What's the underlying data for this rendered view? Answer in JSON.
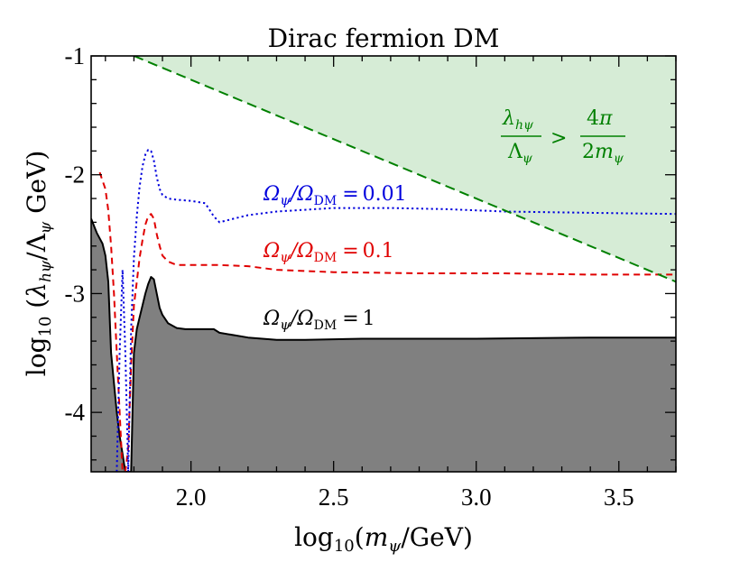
{
  "chart_data": {
    "type": "line",
    "title": "Dirac fermion DM",
    "xlabel": "log10(mψ/GeV)",
    "ylabel": "log10(λhψ/Λψ GeV)",
    "xlim": [
      1.65,
      3.7
    ],
    "ylim": [
      -4.5,
      -1.0
    ],
    "x_ticks": [
      2.0,
      2.5,
      3.0,
      3.5
    ],
    "x_tick_labels": [
      "2.0",
      "2.5",
      "3.0",
      "3.5"
    ],
    "y_ticks": [
      -1,
      -2,
      -3,
      -4
    ],
    "y_tick_labels": [
      "-1",
      "-2",
      "-3",
      "-4"
    ],
    "series": [
      {
        "name": "Ωψ/ΩDM = 1",
        "style": "solid",
        "color": "#000000",
        "fill_below": "#808080",
        "x": [
          1.65,
          1.67,
          1.69,
          1.7,
          1.71,
          1.72,
          1.74,
          1.75,
          1.76,
          1.77,
          1.78,
          1.79,
          1.8,
          1.81,
          1.82,
          1.83,
          1.84,
          1.85,
          1.86,
          1.87,
          1.88,
          1.89,
          1.9,
          1.92,
          1.95,
          1.98,
          2.0,
          2.05,
          2.08,
          2.1,
          2.15,
          2.2,
          2.3,
          2.4,
          2.6,
          3.0,
          3.4,
          3.7
        ],
        "y": [
          -2.37,
          -2.49,
          -2.58,
          -2.68,
          -2.9,
          -3.5,
          -4.0,
          -4.2,
          -4.35,
          -4.5,
          -4.5,
          -4.5,
          -3.5,
          -3.3,
          -3.2,
          -3.1,
          -3.0,
          -2.92,
          -2.86,
          -2.88,
          -3.0,
          -3.12,
          -3.18,
          -3.25,
          -3.29,
          -3.3,
          -3.3,
          -3.3,
          -3.3,
          -3.33,
          -3.35,
          -3.37,
          -3.39,
          -3.39,
          -3.38,
          -3.38,
          -3.37,
          -3.37
        ]
      },
      {
        "name": "Ωψ/ΩDM = 0.1",
        "style": "dashed",
        "color": "#e00000",
        "x": [
          1.68,
          1.69,
          1.7,
          1.71,
          1.72,
          1.73,
          1.74,
          1.75,
          1.76,
          1.77,
          1.78,
          1.79,
          1.8,
          1.81,
          1.82,
          1.83,
          1.84,
          1.85,
          1.86,
          1.87,
          1.88,
          1.89,
          1.9,
          1.92,
          1.95,
          2.0,
          2.1,
          2.2,
          2.3,
          2.5,
          2.8,
          3.1,
          3.4,
          3.7
        ],
        "y": [
          -1.98,
          -2.05,
          -2.12,
          -2.3,
          -2.6,
          -3.0,
          -3.5,
          -4.0,
          -4.5,
          -4.5,
          -4.3,
          -3.6,
          -3.1,
          -2.9,
          -2.7,
          -2.55,
          -2.42,
          -2.35,
          -2.33,
          -2.37,
          -2.5,
          -2.6,
          -2.68,
          -2.73,
          -2.76,
          -2.76,
          -2.76,
          -2.77,
          -2.8,
          -2.82,
          -2.83,
          -2.83,
          -2.84,
          -2.84
        ]
      },
      {
        "name": "Ωψ/ΩDM = 0.01",
        "style": "dotted",
        "color": "#0000dd",
        "x": [
          1.74,
          1.75,
          1.76,
          1.77,
          1.78,
          1.79,
          1.8,
          1.81,
          1.82,
          1.83,
          1.84,
          1.85,
          1.86,
          1.87,
          1.88,
          1.89,
          1.9,
          1.92,
          1.95,
          2.0,
          2.05,
          2.08,
          2.1,
          2.15,
          2.2,
          2.3,
          2.5,
          2.7,
          2.9,
          3.1,
          3.4,
          3.7
        ],
        "y": [
          -4.5,
          -3.5,
          -2.8,
          -3.5,
          -4.5,
          -3.3,
          -2.7,
          -2.35,
          -2.1,
          -1.93,
          -1.83,
          -1.79,
          -1.8,
          -1.88,
          -2.02,
          -2.12,
          -2.17,
          -2.2,
          -2.21,
          -2.22,
          -2.24,
          -2.35,
          -2.4,
          -2.37,
          -2.34,
          -2.31,
          -2.28,
          -2.28,
          -2.29,
          -2.31,
          -2.32,
          -2.33
        ]
      },
      {
        "name": "λhψ/Λψ > 4π/2mψ",
        "style": "long-dashed",
        "color": "#008000",
        "fill_above": "#d6ecd6",
        "x": [
          1.8,
          3.7
        ],
        "y": [
          -1.0,
          -2.9
        ]
      }
    ],
    "annotations": [
      {
        "text_parts": {
          "lhs": "Ωψ/ΩDM",
          "eq": "=",
          "val": "0.01"
        },
        "color": "#0000dd"
      },
      {
        "text_parts": {
          "lhs": "Ωψ/ΩDM",
          "eq": "=",
          "val": "0.1"
        },
        "color": "#e00000"
      },
      {
        "text_parts": {
          "lhs": "Ωψ/ΩDM",
          "eq": "=",
          "val": "1"
        },
        "color": "#000000"
      },
      {
        "bound": {
          "num1": "λhψ",
          "den1": "Λψ",
          "op": ">",
          "num2": "4π",
          "den2": "2mψ"
        },
        "color": "#008000"
      }
    ]
  }
}
